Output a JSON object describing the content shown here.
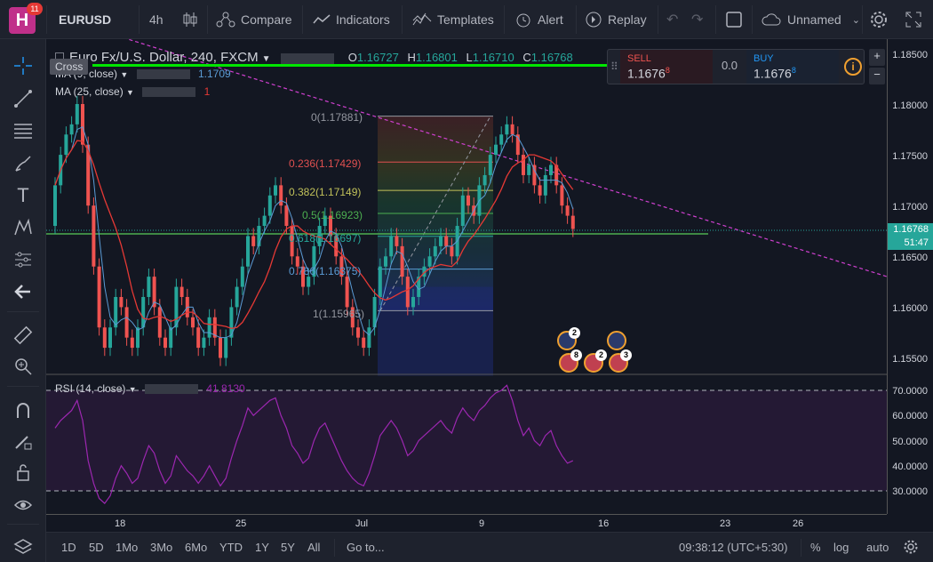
{
  "topbar": {
    "logo_letter": "H",
    "notif_count": "11",
    "symbol": "EURUSD",
    "interval": "4h",
    "compare": "Compare",
    "indicators": "Indicators",
    "templates": "Templates",
    "alert": "Alert",
    "replay": "Replay",
    "layout_name": "Unnamed"
  },
  "tooltip": "Cross",
  "legend": {
    "title": "Euro Fx/U.S. Dollar, 240, FXCM",
    "o_label": "O",
    "o": "1.16727",
    "h_label": "H",
    "h": "1.16801",
    "l_label": "L",
    "l": "1.16710",
    "c_label": "C",
    "c": "1.16768",
    "ind1": "MA (9, close)",
    "ind1_val": "1.1709",
    "ind2": "MA (25, close)",
    "ind2_val": "1"
  },
  "trade": {
    "sell_label": "SELL",
    "sell_main": "1.1676",
    "sell_sup": "8",
    "spread": "0.0",
    "buy_label": "BUY",
    "buy_main": "1.1676",
    "buy_sup": "8"
  },
  "fib": [
    {
      "label": "0(1.17881)",
      "color": "#9598a1"
    },
    {
      "label": "0.236(1.17429)",
      "color": "#e05050"
    },
    {
      "label": "0.382(1.17149)",
      "color": "#c2c25a"
    },
    {
      "label": "0.5(1.16923)",
      "color": "#4caf50"
    },
    {
      "label": "0.618(1.16697)",
      "color": "#26a69a"
    },
    {
      "label": "0.786(1.16375)",
      "color": "#5b9bd5"
    },
    {
      "label": "1(1.15965)",
      "color": "#9598a1"
    }
  ],
  "price_axis": [
    "1.18500",
    "1.18000",
    "1.17500",
    "1.17000",
    "1.16500",
    "1.16000",
    "1.15500"
  ],
  "price_current": "1.16768",
  "countdown": "51:47",
  "rsi": {
    "label": "RSI (14, close)",
    "value": "41.8130",
    "axis": [
      "70.0000",
      "60.0000",
      "50.0000",
      "40.0000",
      "30.0000"
    ]
  },
  "time_axis": [
    "18",
    "25",
    "Jul",
    "9",
    "16",
    "23",
    "26"
  ],
  "events": {
    "eu1": "2",
    "us1": "8",
    "us2": "2",
    "us3": "3"
  },
  "bottom": {
    "ranges": [
      "1D",
      "5D",
      "1Mo",
      "3Mo",
      "6Mo",
      "YTD",
      "1Y",
      "5Y",
      "All"
    ],
    "goto": "Go to...",
    "clock": "09:38:12 (UTC+5:30)",
    "pct": "%",
    "log": "log",
    "auto": "auto"
  },
  "colors": {
    "up": "#26a69a",
    "down": "#ef5350",
    "ma9": "#5b9bd5",
    "ma25": "#e53935",
    "rsi": "#9c27b0",
    "accent_green": "#00e600"
  }
}
